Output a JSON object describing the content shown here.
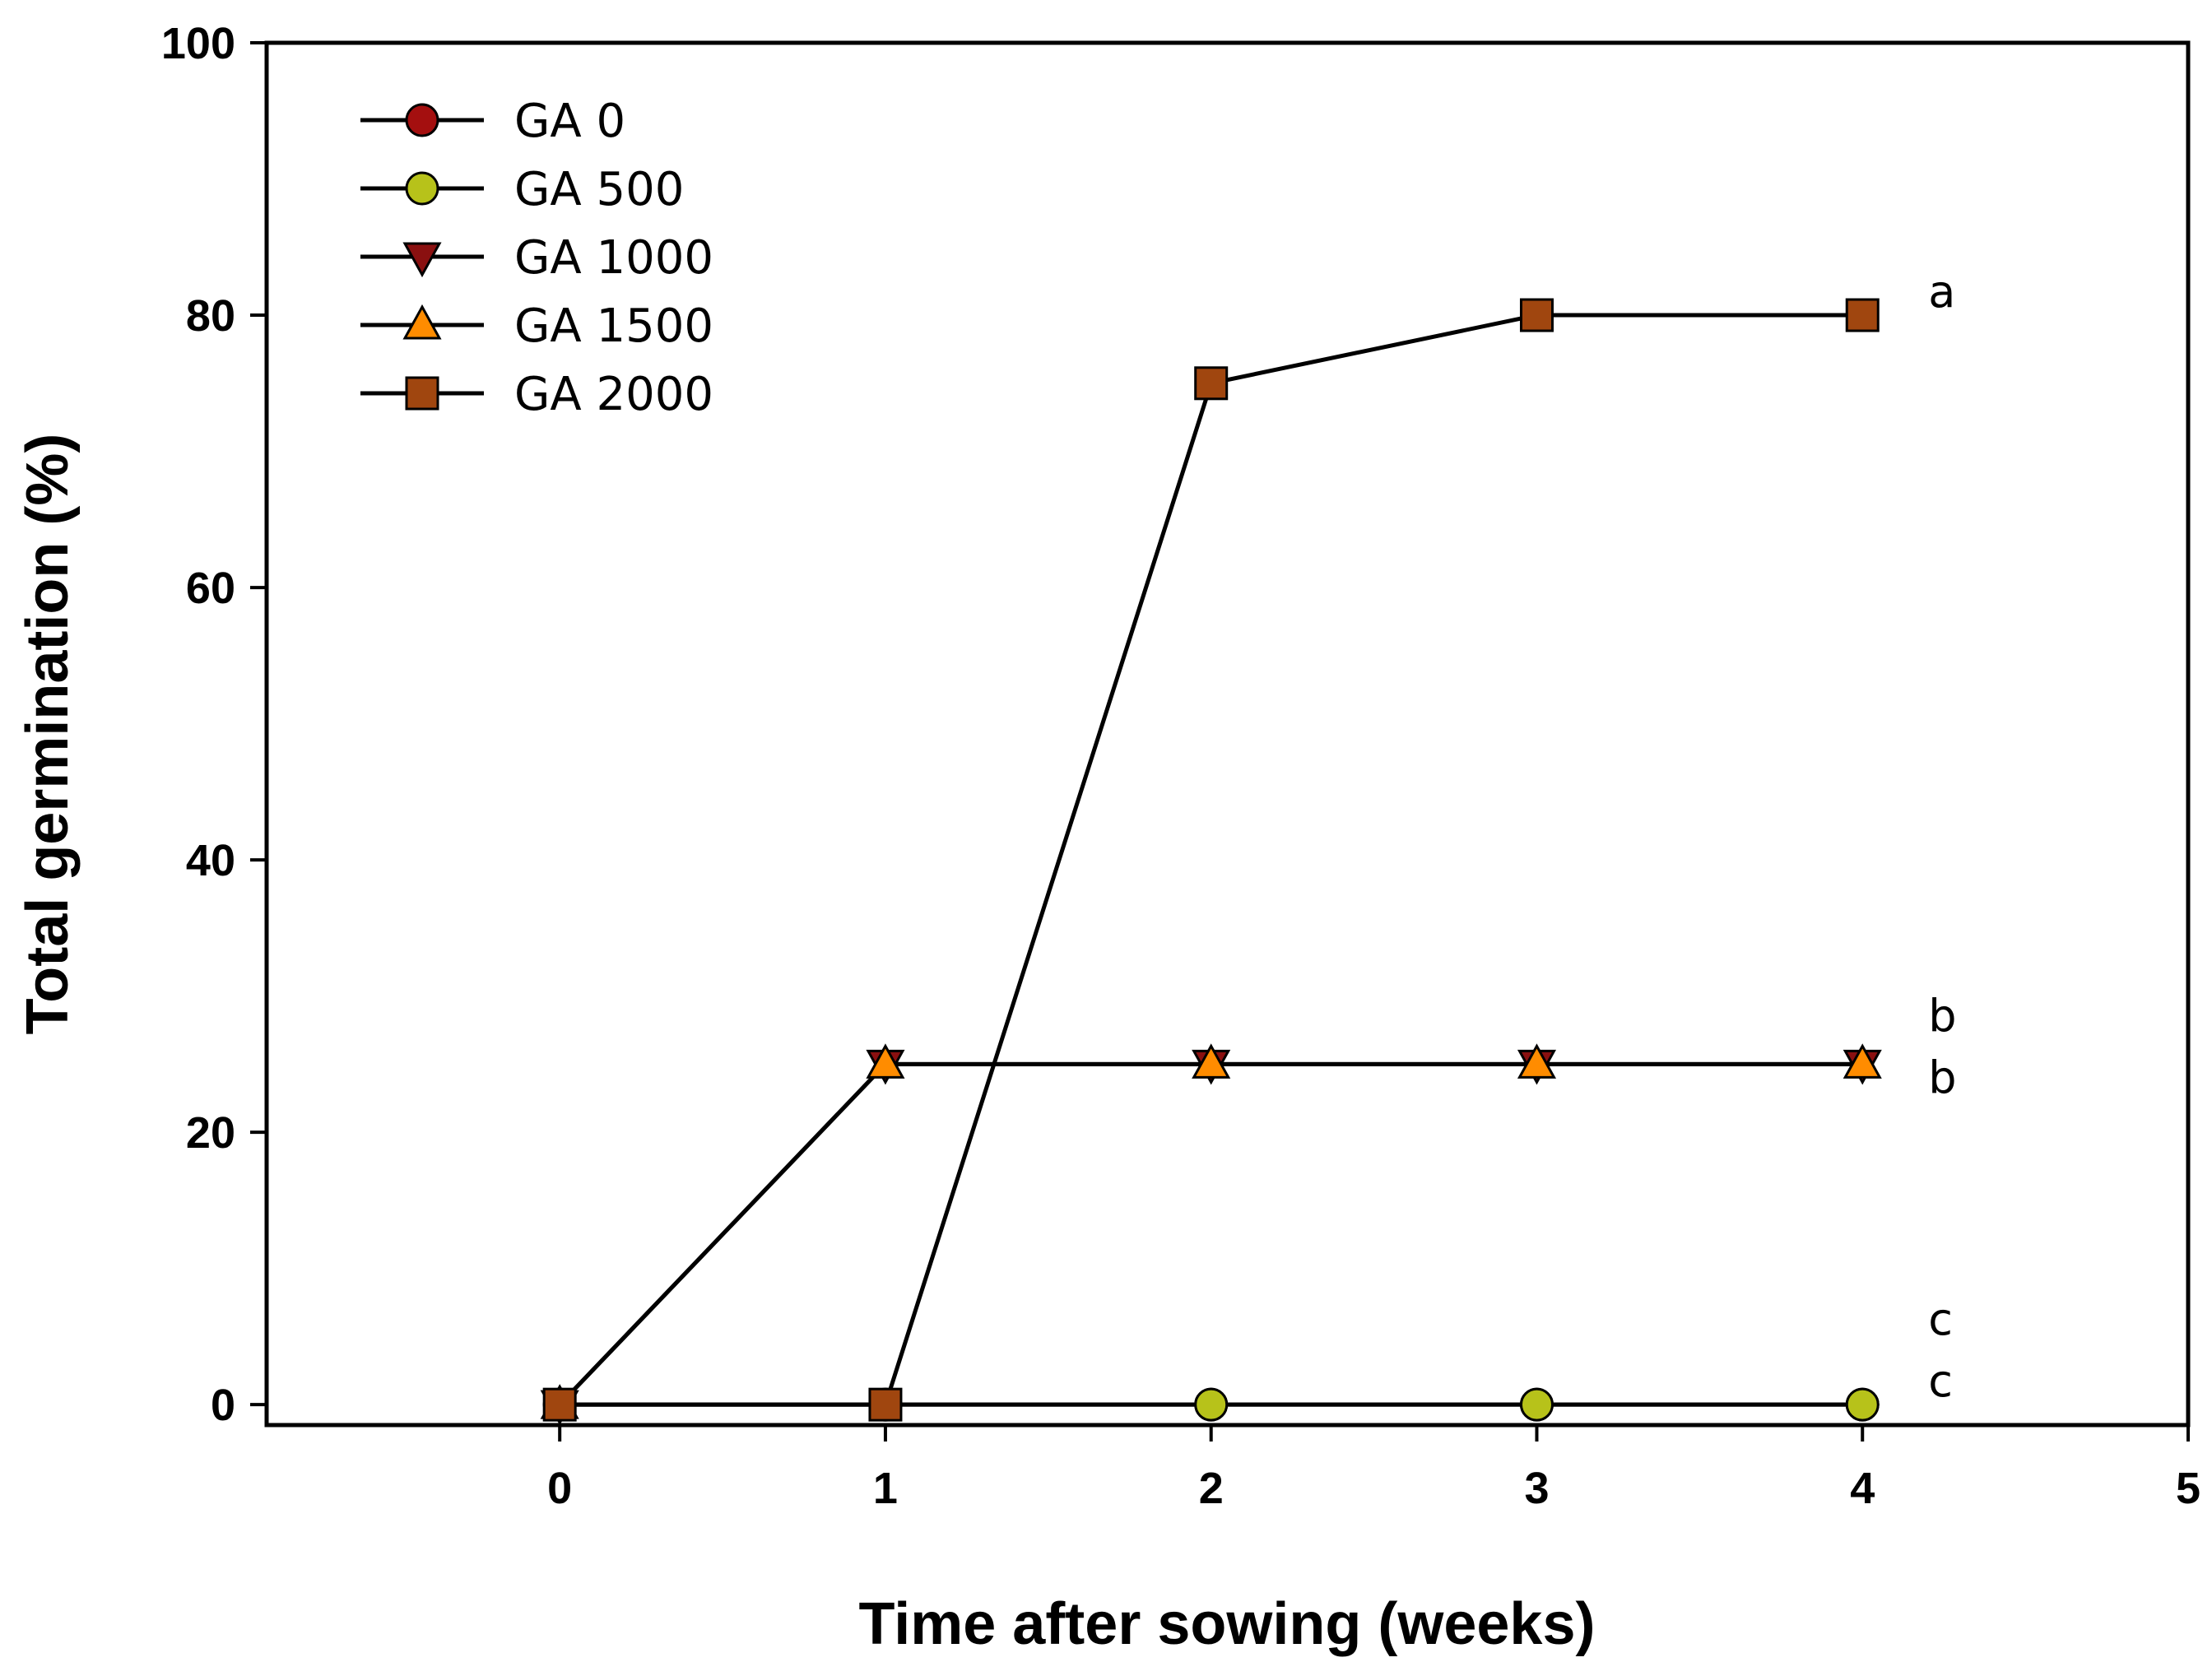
{
  "chart_data": {
    "type": "line",
    "title": "",
    "xlabel": "Time after sowing (weeks)",
    "ylabel": "Total germination (%)",
    "xlim": [
      -0.9,
      5
    ],
    "ylim": [
      -1.5,
      100
    ],
    "xticks": [
      0,
      1,
      2,
      3,
      4,
      5
    ],
    "yticks": [
      0,
      20,
      40,
      60,
      80,
      100
    ],
    "grid": false,
    "legend_position": "top-left",
    "x": [
      0,
      1,
      2,
      3,
      4
    ],
    "series": [
      {
        "name": "GA 0",
        "marker": "circle",
        "color": "#a40f0f",
        "values": [
          0,
          0,
          0,
          0,
          0
        ]
      },
      {
        "name": "GA 500",
        "marker": "circle",
        "color": "#b7c21a",
        "values": [
          0,
          0,
          0,
          0,
          0
        ]
      },
      {
        "name": "GA 1000",
        "marker": "triangle-down",
        "color": "#8a1010",
        "values": [
          0,
          25,
          25,
          25,
          25
        ]
      },
      {
        "name": "GA 1500",
        "marker": "triangle-up",
        "color": "#ff8c00",
        "values": [
          0,
          25,
          25,
          25,
          25
        ]
      },
      {
        "name": "GA 2000",
        "marker": "square",
        "color": "#a0460f",
        "values": [
          0,
          0,
          75,
          80,
          80
        ]
      }
    ],
    "annotations": [
      {
        "text": "a",
        "x": 4,
        "y": 80
      },
      {
        "text": "b",
        "x": 4,
        "y": 25
      },
      {
        "text": "b",
        "x": 4,
        "y": 25
      },
      {
        "text": "c",
        "x": 4,
        "y": 0
      },
      {
        "text": "c",
        "x": 4,
        "y": 0
      }
    ]
  }
}
